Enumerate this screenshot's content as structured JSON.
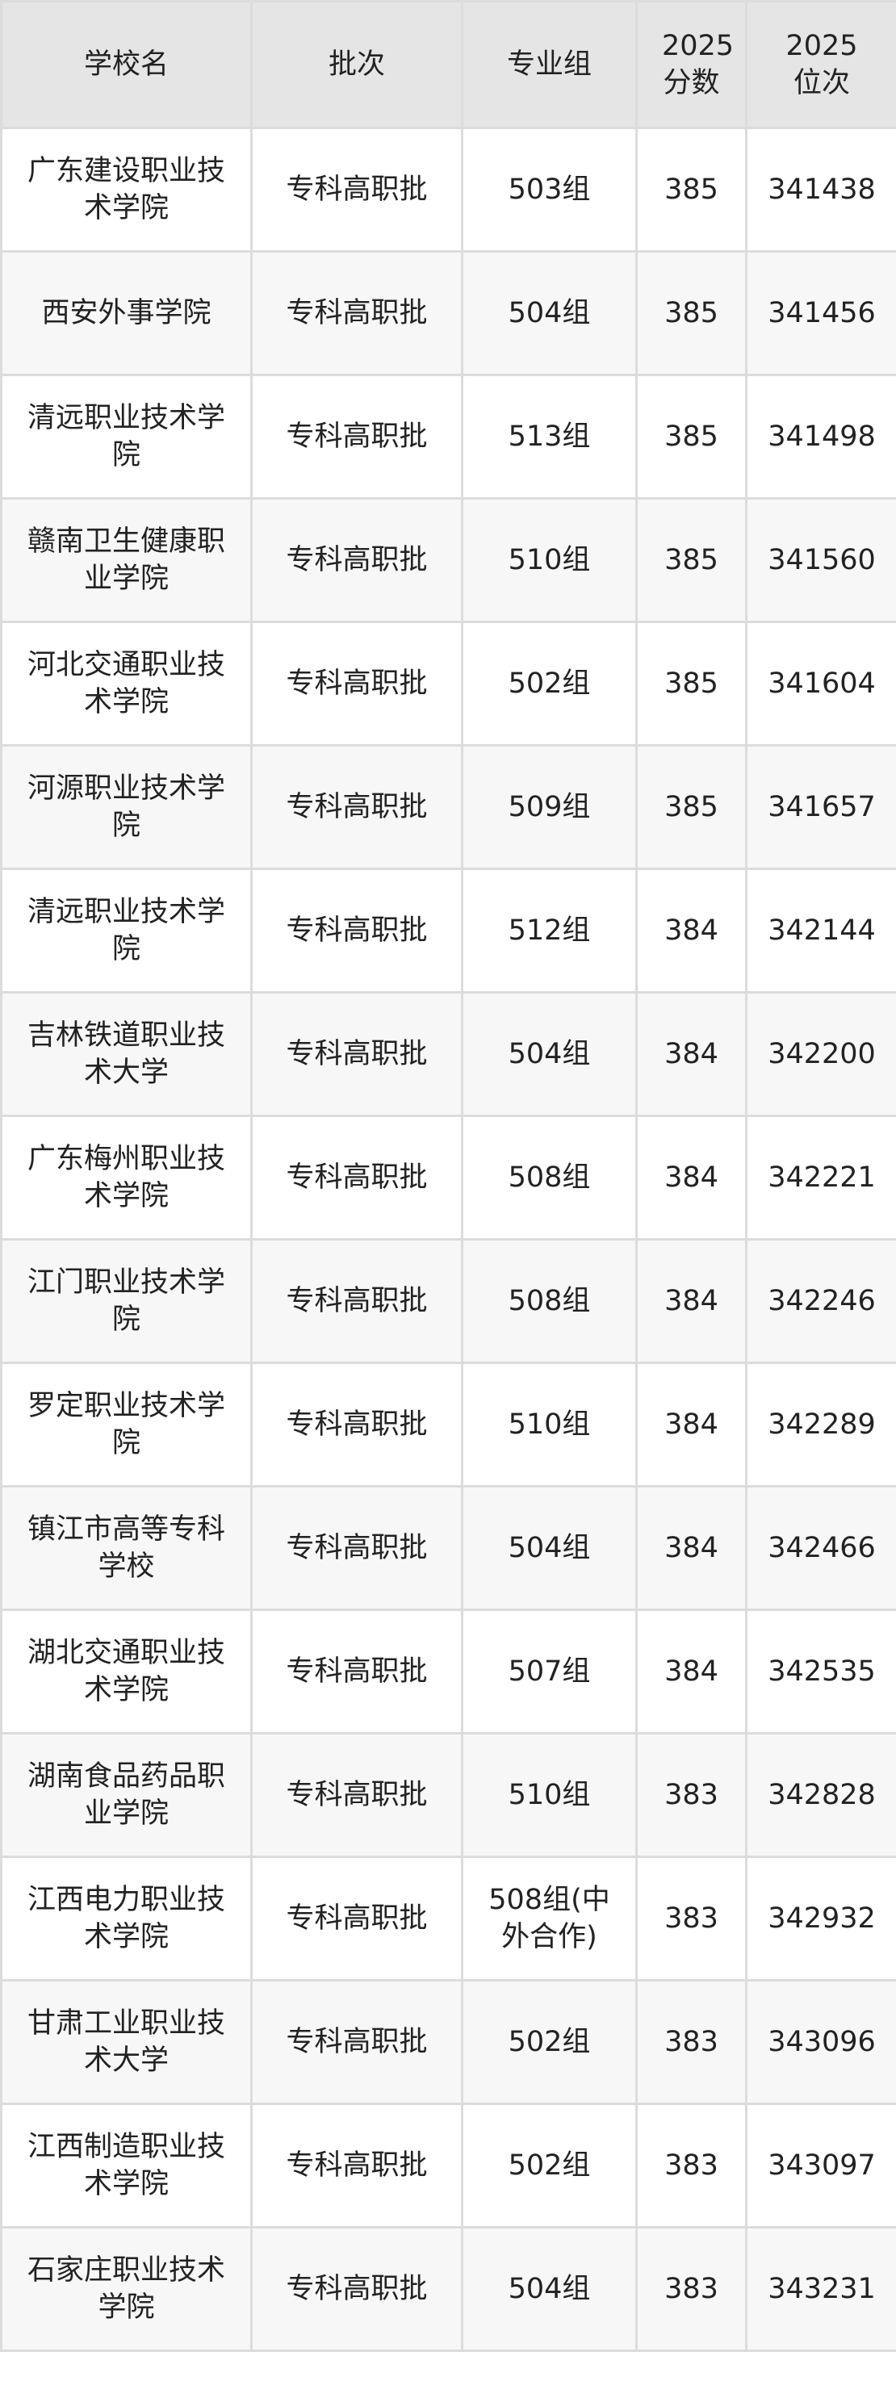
{
  "headers": [
    "学校名",
    "批次",
    "专业组",
    "2025分数",
    "2025位次"
  ],
  "rows": [
    [
      "广东建设职业技术学院",
      "专科高职批",
      "503组",
      "385",
      "341438"
    ],
    [
      "西安外事学院",
      "专科高职批",
      "504组",
      "385",
      "341456"
    ],
    [
      "清远职业技术学院",
      "专科高职批",
      "513组",
      "385",
      "341498"
    ],
    [
      "赣南卫生健康职业学院",
      "专科高职批",
      "510组",
      "385",
      "341560"
    ],
    [
      "河北交通职业技术学院",
      "专科高职批",
      "502组",
      "385",
      "341604"
    ],
    [
      "河源职业技术学院",
      "专科高职批",
      "509组",
      "385",
      "341657"
    ],
    [
      "清远职业技术学院",
      "专科高职批",
      "512组",
      "384",
      "342144"
    ],
    [
      "吉林铁道职业技术大学",
      "专科高职批",
      "504组",
      "384",
      "342200"
    ],
    [
      "广东梅州职业技术学院",
      "专科高职批",
      "508组",
      "384",
      "342221"
    ],
    [
      "江门职业技术学院",
      "专科高职批",
      "508组",
      "384",
      "342246"
    ],
    [
      "罗定职业技术学院",
      "专科高职批",
      "510组",
      "384",
      "342289"
    ],
    [
      "镇江市高等专科学校",
      "专科高职批",
      "504组",
      "384",
      "342466"
    ],
    [
      "湖北交通职业技术学院",
      "专科高职批",
      "507组",
      "384",
      "342535"
    ],
    [
      "湖南食品药品职业学院",
      "专科高职批",
      "510组",
      "383",
      "342828"
    ],
    [
      "江西电力职业技术学院",
      "专科高职批",
      "508组(中外合作)",
      "383",
      "342932"
    ],
    [
      "甘肃工业职业技术大学",
      "专科高职批",
      "502组",
      "383",
      "343096"
    ],
    [
      "江西制造职业技术学院",
      "专科高职批",
      "502组",
      "383",
      "343097"
    ],
    [
      "石家庄职业技术学院",
      "专科高职批",
      "504组",
      "383",
      "343231"
    ]
  ]
}
